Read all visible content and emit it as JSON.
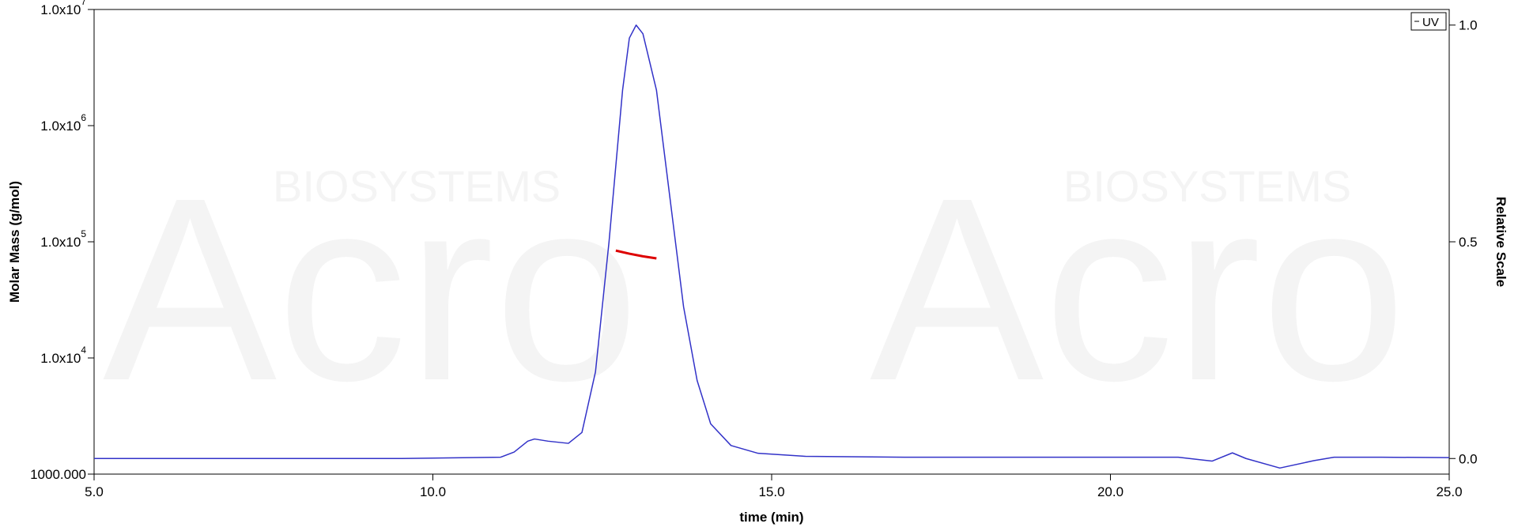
{
  "chart_data": {
    "type": "line",
    "x_label": "time (min)",
    "y_label": "Molar Mass (g/mol)",
    "y2_label": "Relative Scale",
    "watermark": [
      "Acro",
      "BIOSYSTEMS",
      "Acro",
      "BIOSYSTEMS"
    ],
    "log_y": true,
    "xlim": [
      5,
      25
    ],
    "xticks": [
      {
        "value": 5,
        "label": "5.0"
      },
      {
        "value": 10,
        "label": "10.0"
      },
      {
        "value": 15,
        "label": "15.0"
      },
      {
        "value": 20,
        "label": "20.0"
      },
      {
        "value": 25,
        "label": "25.0"
      }
    ],
    "ylim": [
      1000,
      10000000
    ],
    "yticks": [
      {
        "value": 1000,
        "label": "1000.000"
      },
      {
        "value": 10000,
        "label": "1.0x10",
        "exponent": "4"
      },
      {
        "value": 100000,
        "label": "1.0x10",
        "exponent": "5"
      },
      {
        "value": 1000000,
        "label": "1.0x10",
        "exponent": "6"
      },
      {
        "value": 10000000,
        "label": "1.0x10",
        "exponent": "7"
      }
    ],
    "y2lim": [
      -0.036,
      1.036
    ],
    "y2ticks": [
      {
        "value": 0,
        "label": "0.0"
      },
      {
        "value": 0.5,
        "label": "0.5"
      },
      {
        "value": 1,
        "label": "1.0"
      }
    ],
    "legend_position": "upper right",
    "series": [
      {
        "name": "UV",
        "color": "#3232c8",
        "axis": "y2",
        "legend": true,
        "x": [
          5,
          9.5,
          11.0,
          11.2,
          11.4,
          11.5,
          11.7,
          12.0,
          12.2,
          12.4,
          12.6,
          12.8,
          12.9,
          13.0,
          13.1,
          13.3,
          13.5,
          13.7,
          13.9,
          14.1,
          14.4,
          14.8,
          15.5,
          17,
          21.0,
          21.5,
          21.8,
          22.0,
          22.5,
          23.0,
          23.3,
          24,
          25
        ],
        "values": [
          0.0,
          0.0,
          0.003,
          0.015,
          0.04,
          0.045,
          0.04,
          0.035,
          0.06,
          0.2,
          0.5,
          0.85,
          0.97,
          1.0,
          0.98,
          0.85,
          0.6,
          0.35,
          0.18,
          0.08,
          0.03,
          0.012,
          0.005,
          0.003,
          0.003,
          -0.006,
          0.013,
          0.0,
          -0.022,
          -0.005,
          0.003,
          0.003,
          0.002
        ]
      },
      {
        "color": "#dd0000",
        "x": [
          12.7,
          12.9,
          13.1,
          13.3
        ],
        "values": [
          84000,
          79000,
          75000,
          72000
        ]
      }
    ]
  }
}
